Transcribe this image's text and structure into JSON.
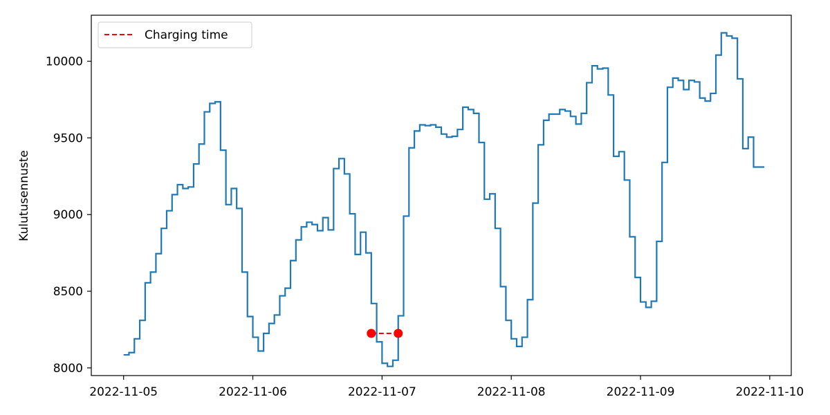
{
  "chart_data": {
    "type": "line",
    "title": "",
    "xlabel": "",
    "ylabel": "Kulutusennuste",
    "x_ticks": [
      "2022-11-05",
      "2022-11-06",
      "2022-11-07",
      "2022-11-08",
      "2022-11-09",
      "2022-11-10"
    ],
    "y_ticks": [
      "8000",
      "8500",
      "9000",
      "9500",
      "10000"
    ],
    "xlim": [
      "2022-11-04T18:00",
      "2022-11-10T04:00"
    ],
    "ylim": [
      7950,
      10300
    ],
    "grid": false,
    "legend_position": "top-left",
    "series": [
      {
        "type": "step",
        "color": "#1f77b4",
        "x": [
          "2022-11-05T00:00",
          "2022-11-05T01:00",
          "2022-11-05T02:00",
          "2022-11-05T03:00",
          "2022-11-05T04:00",
          "2022-11-05T05:00",
          "2022-11-05T06:00",
          "2022-11-05T07:00",
          "2022-11-05T08:00",
          "2022-11-05T09:00",
          "2022-11-05T10:00",
          "2022-11-05T11:00",
          "2022-11-05T12:00",
          "2022-11-05T13:00",
          "2022-11-05T14:00",
          "2022-11-05T15:00",
          "2022-11-05T16:00",
          "2022-11-05T17:00",
          "2022-11-05T18:00",
          "2022-11-05T19:00",
          "2022-11-05T20:00",
          "2022-11-05T21:00",
          "2022-11-05T22:00",
          "2022-11-05T23:00",
          "2022-11-06T00:00",
          "2022-11-06T01:00",
          "2022-11-06T02:00",
          "2022-11-06T03:00",
          "2022-11-06T04:00",
          "2022-11-06T05:00",
          "2022-11-06T06:00",
          "2022-11-06T07:00",
          "2022-11-06T08:00",
          "2022-11-06T09:00",
          "2022-11-06T10:00",
          "2022-11-06T11:00",
          "2022-11-06T12:00",
          "2022-11-06T13:00",
          "2022-11-06T14:00",
          "2022-11-06T15:00",
          "2022-11-06T16:00",
          "2022-11-06T17:00",
          "2022-11-06T18:00",
          "2022-11-06T19:00",
          "2022-11-06T20:00",
          "2022-11-06T21:00",
          "2022-11-06T22:00",
          "2022-11-06T23:00",
          "2022-11-07T00:00",
          "2022-11-07T01:00",
          "2022-11-07T02:00",
          "2022-11-07T03:00",
          "2022-11-07T04:00",
          "2022-11-07T05:00",
          "2022-11-07T06:00",
          "2022-11-07T07:00",
          "2022-11-07T08:00",
          "2022-11-07T09:00",
          "2022-11-07T10:00",
          "2022-11-07T11:00",
          "2022-11-07T12:00",
          "2022-11-07T13:00",
          "2022-11-07T14:00",
          "2022-11-07T15:00",
          "2022-11-07T16:00",
          "2022-11-07T17:00",
          "2022-11-07T18:00",
          "2022-11-07T19:00",
          "2022-11-07T20:00",
          "2022-11-07T21:00",
          "2022-11-07T22:00",
          "2022-11-07T23:00",
          "2022-11-08T00:00",
          "2022-11-08T01:00",
          "2022-11-08T02:00",
          "2022-11-08T03:00",
          "2022-11-08T04:00",
          "2022-11-08T05:00",
          "2022-11-08T06:00",
          "2022-11-08T07:00",
          "2022-11-08T08:00",
          "2022-11-08T09:00",
          "2022-11-08T10:00",
          "2022-11-08T11:00",
          "2022-11-08T12:00",
          "2022-11-08T13:00",
          "2022-11-08T14:00",
          "2022-11-08T15:00",
          "2022-11-08T16:00",
          "2022-11-08T17:00",
          "2022-11-08T18:00",
          "2022-11-08T19:00",
          "2022-11-08T20:00",
          "2022-11-08T21:00",
          "2022-11-08T22:00",
          "2022-11-08T23:00",
          "2022-11-09T00:00",
          "2022-11-09T01:00",
          "2022-11-09T02:00",
          "2022-11-09T03:00",
          "2022-11-09T04:00",
          "2022-11-09T05:00",
          "2022-11-09T06:00",
          "2022-11-09T07:00",
          "2022-11-09T08:00",
          "2022-11-09T09:00",
          "2022-11-09T10:00",
          "2022-11-09T11:00",
          "2022-11-09T12:00",
          "2022-11-09T13:00",
          "2022-11-09T14:00",
          "2022-11-09T15:00",
          "2022-11-09T16:00",
          "2022-11-09T17:00",
          "2022-11-09T18:00",
          "2022-11-09T19:00",
          "2022-11-09T20:00",
          "2022-11-09T21:00",
          "2022-11-09T22:00"
        ],
        "values": [
          8085,
          8100,
          8190,
          8310,
          8555,
          8625,
          8745,
          8910,
          9025,
          9130,
          9195,
          9170,
          9180,
          9330,
          9460,
          9670,
          9725,
          9735,
          9420,
          9065,
          9170,
          9040,
          8625,
          8335,
          8200,
          8110,
          8225,
          8290,
          8345,
          8470,
          8520,
          8700,
          8835,
          8920,
          8950,
          8935,
          8895,
          8980,
          8900,
          9300,
          9365,
          9265,
          9005,
          8740,
          8885,
          8750,
          8420,
          8170,
          8030,
          8010,
          8050,
          8340,
          8990,
          9435,
          9545,
          9585,
          9580,
          9585,
          9570,
          9525,
          9505,
          9510,
          9555,
          9700,
          9685,
          9660,
          9470,
          9100,
          9135,
          8910,
          8530,
          8310,
          8190,
          8140,
          8200,
          8445,
          9075,
          9455,
          9615,
          9655,
          9655,
          9685,
          9675,
          9640,
          9590,
          9660,
          9860,
          9970,
          9950,
          9955,
          9780,
          9380,
          9410,
          9225,
          8855,
          8590,
          8430,
          8395,
          8435,
          8825,
          9340,
          9830,
          9890,
          9875,
          9815,
          9875,
          9865,
          9760,
          9740,
          9790,
          10040,
          10185,
          10165,
          10150,
          9885,
          9430,
          9505,
          9310,
          9310
        ]
      }
    ],
    "charging_time": {
      "name": "Charging time",
      "color": "#ff0000",
      "x": [
        "2022-11-06T22:00",
        "2022-11-07T03:00"
      ],
      "values": [
        8225,
        8225
      ]
    }
  }
}
